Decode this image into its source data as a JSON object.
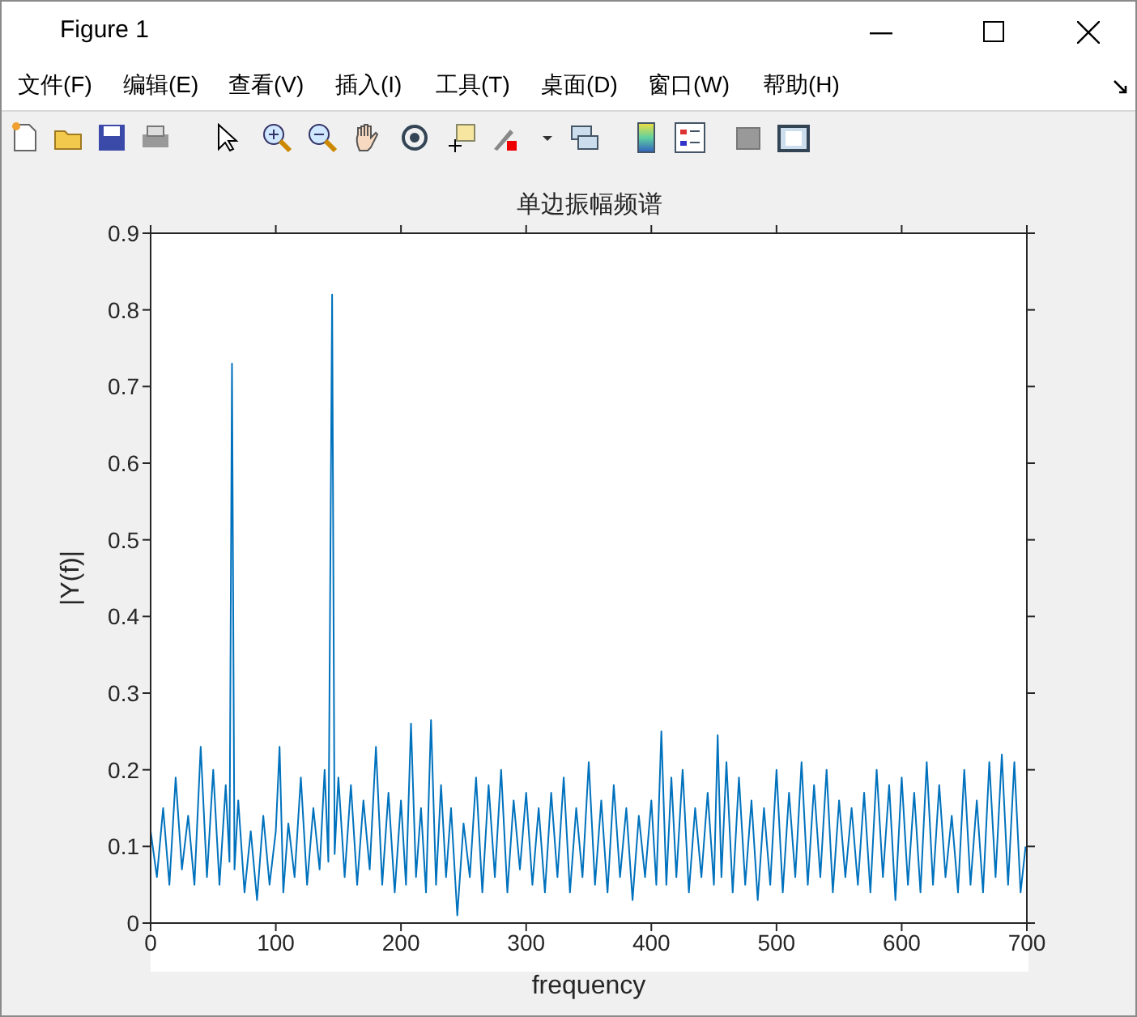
{
  "chart_data": {
    "type": "line",
    "title": "单边振幅频谱",
    "xlabel": "frequency",
    "ylabel": "|Y(f)|",
    "annotations": [
      "Figure 1",
      "文件(F)",
      "编辑(E)",
      "查看(V)",
      "插入(I)",
      "工具(T)",
      "桌面(D)",
      "窗口(W)",
      "帮助(H)"
    ],
    "x": [
      0,
      5,
      10,
      15,
      20,
      25,
      30,
      35,
      40,
      45,
      50,
      55,
      60,
      63,
      65,
      67,
      70,
      75,
      80,
      85,
      90,
      95,
      100,
      103,
      106,
      110,
      115,
      120,
      125,
      130,
      135,
      139,
      142,
      145,
      147,
      150,
      155,
      160,
      165,
      170,
      175,
      180,
      185,
      190,
      195,
      200,
      204,
      208,
      212,
      216,
      220,
      224,
      228,
      232,
      236,
      240,
      245,
      250,
      255,
      260,
      265,
      270,
      275,
      280,
      285,
      290,
      295,
      300,
      305,
      310,
      315,
      320,
      325,
      330,
      335,
      340,
      345,
      350,
      355,
      360,
      365,
      370,
      375,
      380,
      385,
      390,
      395,
      400,
      404,
      408,
      412,
      416,
      420,
      425,
      430,
      435,
      440,
      445,
      450,
      453,
      456,
      460,
      465,
      470,
      475,
      480,
      485,
      490,
      495,
      500,
      505,
      510,
      515,
      520,
      525,
      530,
      535,
      540,
      545,
      550,
      555,
      560,
      565,
      570,
      575,
      580,
      585,
      590,
      595,
      600,
      605,
      610,
      615,
      620,
      625,
      630,
      635,
      640,
      645,
      650,
      655,
      660,
      665,
      670,
      675,
      680,
      685,
      690,
      695,
      699
    ],
    "series": [
      {
        "color": "#0072bd",
        "values": [
          0.12,
          0.06,
          0.15,
          0.05,
          0.19,
          0.07,
          0.14,
          0.05,
          0.23,
          0.06,
          0.2,
          0.05,
          0.18,
          0.08,
          0.73,
          0.07,
          0.16,
          0.04,
          0.12,
          0.03,
          0.14,
          0.05,
          0.12,
          0.23,
          0.04,
          0.13,
          0.06,
          0.19,
          0.05,
          0.15,
          0.07,
          0.2,
          0.08,
          0.82,
          0.09,
          0.19,
          0.06,
          0.18,
          0.05,
          0.16,
          0.07,
          0.23,
          0.05,
          0.17,
          0.04,
          0.16,
          0.05,
          0.26,
          0.06,
          0.15,
          0.04,
          0.265,
          0.05,
          0.18,
          0.06,
          0.15,
          0.01,
          0.13,
          0.06,
          0.19,
          0.04,
          0.18,
          0.06,
          0.2,
          0.04,
          0.16,
          0.07,
          0.17,
          0.05,
          0.15,
          0.04,
          0.17,
          0.06,
          0.19,
          0.04,
          0.15,
          0.06,
          0.21,
          0.05,
          0.16,
          0.04,
          0.18,
          0.06,
          0.15,
          0.03,
          0.14,
          0.06,
          0.16,
          0.05,
          0.25,
          0.05,
          0.19,
          0.06,
          0.2,
          0.04,
          0.15,
          0.06,
          0.17,
          0.05,
          0.245,
          0.06,
          0.21,
          0.04,
          0.19,
          0.05,
          0.16,
          0.03,
          0.15,
          0.05,
          0.2,
          0.04,
          0.17,
          0.06,
          0.21,
          0.05,
          0.18,
          0.06,
          0.2,
          0.04,
          0.16,
          0.06,
          0.15,
          0.05,
          0.17,
          0.04,
          0.2,
          0.06,
          0.18,
          0.03,
          0.19,
          0.05,
          0.17,
          0.04,
          0.21,
          0.05,
          0.18,
          0.06,
          0.14,
          0.04,
          0.2,
          0.05,
          0.16,
          0.04,
          0.21,
          0.06,
          0.22,
          0.05,
          0.21,
          0.04,
          0.1
        ]
      }
    ],
    "xlim": [
      0,
      700
    ],
    "ylim": [
      0,
      0.9
    ],
    "xticks": [
      0,
      100,
      200,
      300,
      400,
      500,
      600,
      700
    ],
    "yticks": [
      0,
      0.1,
      0.2,
      0.3,
      0.4,
      0.5,
      0.6,
      0.7,
      0.8,
      0.9
    ]
  }
}
